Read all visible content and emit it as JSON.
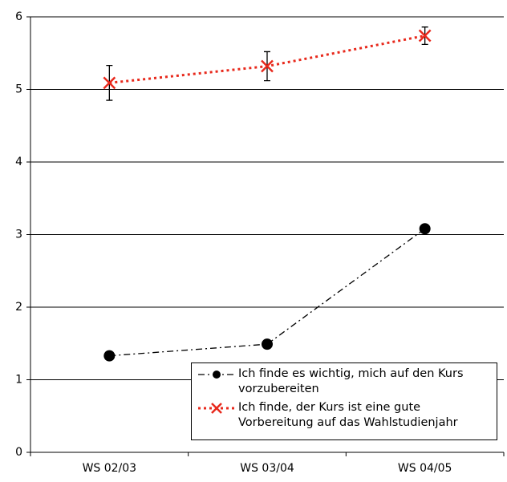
{
  "chart_data": {
    "type": "line",
    "categories": [
      "WS 02/03",
      "WS 03/04",
      "WS 04/05"
    ],
    "series": [
      {
        "name": "Ich finde es wichtig, mich auf den Kurs vorzubereiten",
        "color": "#000000",
        "marker": "circle",
        "dash": "dashdot",
        "values": [
          1.33,
          1.49,
          3.08
        ]
      },
      {
        "name": "Ich finde, der Kurs ist eine gute Vorbereitung auf das Wahlstudienjahr",
        "color": "#e8291c",
        "marker": "x",
        "dash": "dotted",
        "values": [
          5.09,
          5.32,
          5.74
        ],
        "errors": [
          0.24,
          0.2,
          0.12
        ]
      }
    ],
    "ylim": [
      0,
      6
    ],
    "yticks": [
      0,
      1,
      2,
      3,
      4,
      5,
      6
    ],
    "grid": true,
    "legend": "lower right"
  }
}
